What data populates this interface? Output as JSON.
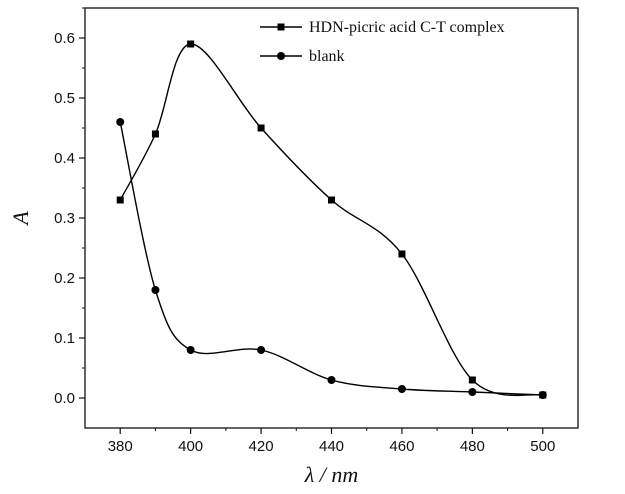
{
  "chart_data": {
    "type": "line",
    "xlabel": "λ / nm",
    "ylabel": "A",
    "xlim": [
      370,
      510
    ],
    "ylim": [
      -0.05,
      0.65
    ],
    "x_ticks": [
      380,
      400,
      420,
      440,
      460,
      480,
      500
    ],
    "y_ticks": [
      0.0,
      0.1,
      0.2,
      0.3,
      0.4,
      0.5,
      0.6
    ],
    "x_tick_labels": [
      "380",
      "400",
      "420",
      "440",
      "460",
      "480",
      "500"
    ],
    "y_tick_labels": [
      "0.0",
      "0.1",
      "0.2",
      "0.3",
      "0.4",
      "0.5",
      "0.6"
    ],
    "grid": false,
    "legend_position": "top-right",
    "series": [
      {
        "name": "HDN-picric acid C-T complex",
        "marker": "square",
        "color": "#000000",
        "x": [
          380,
          390,
          400,
          420,
          440,
          460,
          480,
          500
        ],
        "y": [
          0.33,
          0.44,
          0.59,
          0.45,
          0.33,
          0.24,
          0.03,
          0.005
        ]
      },
      {
        "name": "blank",
        "marker": "circle",
        "color": "#000000",
        "x": [
          380,
          390,
          400,
          420,
          440,
          460,
          480,
          500
        ],
        "y": [
          0.46,
          0.18,
          0.08,
          0.08,
          0.03,
          0.015,
          0.01,
          0.005
        ]
      }
    ]
  }
}
